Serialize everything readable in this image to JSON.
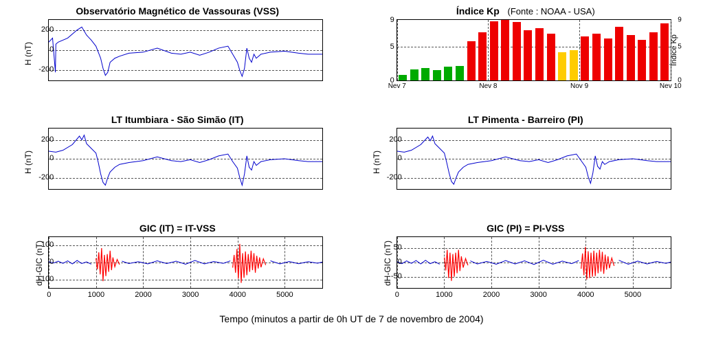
{
  "background_color": "#ffffff",
  "grid_color": "#555555",
  "line_color": "#0000cc",
  "line_width": 1,
  "gic_red_color": "#ff0000",
  "caption": "Tempo  (minutos a partir de 0h UT de 7 de novembro de 2004)",
  "panels": {
    "vss": {
      "title": "Observatório Magnético de Vassouras (VSS)",
      "ylabel": "H (nT)",
      "ylim": [
        -300,
        300
      ],
      "yticks": [
        -200,
        0,
        200
      ],
      "xlim": [
        0,
        5800
      ],
      "data": [
        [
          0,
          80
        ],
        [
          80,
          120
        ],
        [
          140,
          -220
        ],
        [
          150,
          60
        ],
        [
          200,
          80
        ],
        [
          400,
          120
        ],
        [
          600,
          200
        ],
        [
          700,
          230
        ],
        [
          800,
          150
        ],
        [
          900,
          100
        ],
        [
          1000,
          40
        ],
        [
          1100,
          -80
        ],
        [
          1150,
          -180
        ],
        [
          1200,
          -250
        ],
        [
          1250,
          -220
        ],
        [
          1300,
          -120
        ],
        [
          1400,
          -80
        ],
        [
          1500,
          -60
        ],
        [
          1700,
          -30
        ],
        [
          2000,
          -20
        ],
        [
          2300,
          20
        ],
        [
          2600,
          -30
        ],
        [
          2800,
          -40
        ],
        [
          3000,
          -20
        ],
        [
          3200,
          -50
        ],
        [
          3400,
          -20
        ],
        [
          3600,
          20
        ],
        [
          3800,
          40
        ],
        [
          3900,
          -40
        ],
        [
          4000,
          -120
        ],
        [
          4050,
          -200
        ],
        [
          4100,
          -260
        ],
        [
          4150,
          -180
        ],
        [
          4200,
          20
        ],
        [
          4250,
          -80
        ],
        [
          4300,
          -120
        ],
        [
          4350,
          -40
        ],
        [
          4400,
          -80
        ],
        [
          4500,
          -40
        ],
        [
          4700,
          -20
        ],
        [
          5000,
          -10
        ],
        [
          5300,
          -30
        ],
        [
          5500,
          -40
        ],
        [
          5800,
          -40
        ]
      ]
    },
    "kp": {
      "title": "Índice Kp",
      "subtitle": "(Fonte : NOAA - USA)",
      "ylabel_right": "Índice Kp",
      "ylim": [
        0,
        9
      ],
      "yticks": [
        0,
        5,
        9
      ],
      "xlim": [
        0,
        24
      ],
      "xticks": [
        {
          "pos": 0,
          "label": "Nev 7"
        },
        {
          "pos": 8,
          "label": "Nev 8"
        },
        {
          "pos": 16,
          "label": "Nov 9"
        },
        {
          "pos": 24,
          "label": "Nev 10"
        }
      ],
      "bar_width": 0.72,
      "colors": {
        "green": "#00aa00",
        "orange": "#ffcc00",
        "red": "#ee0000"
      },
      "bars": [
        {
          "x": 0,
          "h": 0.8,
          "c": "green"
        },
        {
          "x": 1,
          "h": 1.6,
          "c": "green"
        },
        {
          "x": 2,
          "h": 1.8,
          "c": "green"
        },
        {
          "x": 3,
          "h": 1.5,
          "c": "green"
        },
        {
          "x": 4,
          "h": 2.0,
          "c": "green"
        },
        {
          "x": 5,
          "h": 2.2,
          "c": "green"
        },
        {
          "x": 6,
          "h": 5.8,
          "c": "red"
        },
        {
          "x": 7,
          "h": 7.2,
          "c": "red"
        },
        {
          "x": 8,
          "h": 8.8,
          "c": "red"
        },
        {
          "x": 9,
          "h": 9.0,
          "c": "red"
        },
        {
          "x": 10,
          "h": 8.7,
          "c": "red"
        },
        {
          "x": 11,
          "h": 7.5,
          "c": "red"
        },
        {
          "x": 12,
          "h": 7.8,
          "c": "red"
        },
        {
          "x": 13,
          "h": 7.0,
          "c": "red"
        },
        {
          "x": 14,
          "h": 4.2,
          "c": "orange"
        },
        {
          "x": 15,
          "h": 4.5,
          "c": "orange"
        },
        {
          "x": 16,
          "h": 6.5,
          "c": "red"
        },
        {
          "x": 17,
          "h": 7.0,
          "c": "red"
        },
        {
          "x": 18,
          "h": 6.2,
          "c": "red"
        },
        {
          "x": 19,
          "h": 8.0,
          "c": "red"
        },
        {
          "x": 20,
          "h": 6.8,
          "c": "red"
        },
        {
          "x": 21,
          "h": 6.0,
          "c": "red"
        },
        {
          "x": 22,
          "h": 7.2,
          "c": "red"
        },
        {
          "x": 23,
          "h": 8.5,
          "c": "red"
        }
      ]
    },
    "it": {
      "title": "LT Itumbiara - São Simão (IT)",
      "ylabel": "H (nT)",
      "ylim": [
        -320,
        320
      ],
      "yticks": [
        -200,
        0,
        200
      ],
      "xlim": [
        0,
        5800
      ],
      "data": [
        [
          0,
          80
        ],
        [
          150,
          70
        ],
        [
          300,
          90
        ],
        [
          500,
          150
        ],
        [
          650,
          240
        ],
        [
          700,
          200
        ],
        [
          750,
          250
        ],
        [
          800,
          160
        ],
        [
          900,
          110
        ],
        [
          1000,
          60
        ],
        [
          1050,
          -40
        ],
        [
          1100,
          -160
        ],
        [
          1150,
          -250
        ],
        [
          1200,
          -280
        ],
        [
          1250,
          -200
        ],
        [
          1300,
          -140
        ],
        [
          1400,
          -90
        ],
        [
          1500,
          -60
        ],
        [
          1700,
          -40
        ],
        [
          2000,
          -20
        ],
        [
          2300,
          20
        ],
        [
          2600,
          -20
        ],
        [
          2800,
          -30
        ],
        [
          3000,
          -10
        ],
        [
          3200,
          -40
        ],
        [
          3400,
          -10
        ],
        [
          3600,
          30
        ],
        [
          3800,
          50
        ],
        [
          3900,
          -30
        ],
        [
          4000,
          -100
        ],
        [
          4050,
          -200
        ],
        [
          4100,
          -280
        ],
        [
          4150,
          -160
        ],
        [
          4200,
          30
        ],
        [
          4250,
          -90
        ],
        [
          4300,
          -120
        ],
        [
          4350,
          -30
        ],
        [
          4400,
          -70
        ],
        [
          4500,
          -30
        ],
        [
          4700,
          -10
        ],
        [
          5000,
          0
        ],
        [
          5300,
          -20
        ],
        [
          5500,
          -30
        ],
        [
          5800,
          -30
        ]
      ]
    },
    "pi": {
      "title": "LT Pimenta - Barreiro  (PI)",
      "ylabel": "H (nT)",
      "ylim": [
        -320,
        320
      ],
      "yticks": [
        -200,
        0,
        200
      ],
      "xlim": [
        0,
        5800
      ],
      "data": [
        [
          0,
          80
        ],
        [
          150,
          70
        ],
        [
          300,
          90
        ],
        [
          500,
          150
        ],
        [
          650,
          230
        ],
        [
          700,
          190
        ],
        [
          750,
          240
        ],
        [
          800,
          160
        ],
        [
          900,
          110
        ],
        [
          1000,
          60
        ],
        [
          1050,
          -40
        ],
        [
          1100,
          -150
        ],
        [
          1150,
          -240
        ],
        [
          1200,
          -270
        ],
        [
          1250,
          -200
        ],
        [
          1300,
          -140
        ],
        [
          1400,
          -90
        ],
        [
          1500,
          -60
        ],
        [
          1700,
          -40
        ],
        [
          2000,
          -20
        ],
        [
          2300,
          20
        ],
        [
          2600,
          -20
        ],
        [
          2800,
          -30
        ],
        [
          3000,
          -10
        ],
        [
          3200,
          -40
        ],
        [
          3400,
          -10
        ],
        [
          3600,
          30
        ],
        [
          3800,
          50
        ],
        [
          3900,
          -20
        ],
        [
          4000,
          -90
        ],
        [
          4050,
          -190
        ],
        [
          4100,
          -260
        ],
        [
          4150,
          -150
        ],
        [
          4200,
          30
        ],
        [
          4250,
          -80
        ],
        [
          4300,
          -110
        ],
        [
          4350,
          -30
        ],
        [
          4400,
          -60
        ],
        [
          4500,
          -30
        ],
        [
          4700,
          -10
        ],
        [
          5000,
          0
        ],
        [
          5300,
          -20
        ],
        [
          5500,
          -30
        ],
        [
          5800,
          -30
        ]
      ]
    },
    "gic_it": {
      "title": "GIC (IT) = IT-VSS",
      "ylabel": "dH-GIC (nT)",
      "ylim": [
        -150,
        150
      ],
      "yticks": [
        -100,
        0,
        100
      ],
      "xlim": [
        0,
        5800
      ],
      "xticks": [
        0,
        1000,
        2000,
        3000,
        4000,
        5000
      ],
      "red_zones": [
        [
          1000,
          1500
        ],
        [
          3900,
          4600
        ]
      ],
      "data": [
        [
          0,
          5
        ],
        [
          100,
          -3
        ],
        [
          200,
          8
        ],
        [
          300,
          -5
        ],
        [
          400,
          10
        ],
        [
          500,
          -8
        ],
        [
          600,
          12
        ],
        [
          700,
          -6
        ],
        [
          800,
          4
        ],
        [
          900,
          -10
        ],
        [
          1000,
          25
        ],
        [
          1030,
          -40
        ],
        [
          1060,
          60
        ],
        [
          1090,
          -70
        ],
        [
          1120,
          85
        ],
        [
          1150,
          -110
        ],
        [
          1180,
          45
        ],
        [
          1210,
          -80
        ],
        [
          1240,
          50
        ],
        [
          1270,
          -55
        ],
        [
          1300,
          70
        ],
        [
          1330,
          -45
        ],
        [
          1360,
          30
        ],
        [
          1400,
          -25
        ],
        [
          1450,
          18
        ],
        [
          1500,
          -12
        ],
        [
          1550,
          8
        ],
        [
          1700,
          -6
        ],
        [
          1900,
          5
        ],
        [
          2100,
          -8
        ],
        [
          2300,
          10
        ],
        [
          2500,
          -6
        ],
        [
          2700,
          8
        ],
        [
          2900,
          -10
        ],
        [
          3100,
          12
        ],
        [
          3300,
          -8
        ],
        [
          3500,
          6
        ],
        [
          3700,
          -5
        ],
        [
          3850,
          10
        ],
        [
          3900,
          -30
        ],
        [
          3930,
          45
        ],
        [
          3960,
          -60
        ],
        [
          3990,
          80
        ],
        [
          4020,
          -95
        ],
        [
          4050,
          110
        ],
        [
          4080,
          -120
        ],
        [
          4110,
          55
        ],
        [
          4140,
          -90
        ],
        [
          4170,
          65
        ],
        [
          4200,
          -75
        ],
        [
          4230,
          50
        ],
        [
          4260,
          -55
        ],
        [
          4290,
          70
        ],
        [
          4320,
          -45
        ],
        [
          4350,
          55
        ],
        [
          4380,
          -60
        ],
        [
          4410,
          40
        ],
        [
          4440,
          -35
        ],
        [
          4470,
          30
        ],
        [
          4500,
          -28
        ],
        [
          4550,
          22
        ],
        [
          4600,
          -15
        ],
        [
          4700,
          10
        ],
        [
          4900,
          -8
        ],
        [
          5100,
          6
        ],
        [
          5300,
          -7
        ],
        [
          5500,
          5
        ],
        [
          5700,
          -4
        ],
        [
          5800,
          3
        ]
      ]
    },
    "gic_pi": {
      "title": "GIC (PI) = PI-VSS",
      "ylabel": "dH-GIC (nT)",
      "ylim": [
        -90,
        90
      ],
      "yticks": [
        -50,
        0,
        50
      ],
      "xlim": [
        0,
        5800
      ],
      "xticks": [
        0,
        1000,
        2000,
        3000,
        4000,
        5000
      ],
      "red_zones": [
        [
          1000,
          1500
        ],
        [
          3900,
          4600
        ]
      ],
      "data": [
        [
          0,
          3
        ],
        [
          100,
          -4
        ],
        [
          200,
          6
        ],
        [
          300,
          -3
        ],
        [
          400,
          7
        ],
        [
          500,
          -5
        ],
        [
          600,
          8
        ],
        [
          700,
          -4
        ],
        [
          800,
          3
        ],
        [
          900,
          -6
        ],
        [
          1000,
          18
        ],
        [
          1030,
          -28
        ],
        [
          1060,
          45
        ],
        [
          1090,
          -55
        ],
        [
          1120,
          35
        ],
        [
          1150,
          -65
        ],
        [
          1180,
          30
        ],
        [
          1210,
          -50
        ],
        [
          1240,
          35
        ],
        [
          1270,
          -38
        ],
        [
          1300,
          45
        ],
        [
          1330,
          -30
        ],
        [
          1360,
          22
        ],
        [
          1400,
          -18
        ],
        [
          1450,
          14
        ],
        [
          1500,
          -10
        ],
        [
          1550,
          6
        ],
        [
          1700,
          -5
        ],
        [
          1900,
          4
        ],
        [
          2100,
          -6
        ],
        [
          2300,
          7
        ],
        [
          2500,
          -5
        ],
        [
          2700,
          6
        ],
        [
          2900,
          -7
        ],
        [
          3100,
          8
        ],
        [
          3300,
          -6
        ],
        [
          3500,
          5
        ],
        [
          3700,
          -4
        ],
        [
          3850,
          7
        ],
        [
          3900,
          -22
        ],
        [
          3930,
          32
        ],
        [
          3960,
          -45
        ],
        [
          3990,
          55
        ],
        [
          4020,
          -60
        ],
        [
          4050,
          40
        ],
        [
          4080,
          -55
        ],
        [
          4110,
          35
        ],
        [
          4140,
          -50
        ],
        [
          4170,
          42
        ],
        [
          4200,
          -48
        ],
        [
          4230,
          35
        ],
        [
          4260,
          -38
        ],
        [
          4290,
          45
        ],
        [
          4320,
          -32
        ],
        [
          4350,
          38
        ],
        [
          4380,
          -40
        ],
        [
          4410,
          28
        ],
        [
          4440,
          -25
        ],
        [
          4470,
          22
        ],
        [
          4500,
          -20
        ],
        [
          4550,
          16
        ],
        [
          4600,
          -12
        ],
        [
          4700,
          8
        ],
        [
          4900,
          -6
        ],
        [
          5100,
          5
        ],
        [
          5300,
          -5
        ],
        [
          5500,
          4
        ],
        [
          5700,
          -3
        ],
        [
          5800,
          2
        ]
      ]
    }
  }
}
